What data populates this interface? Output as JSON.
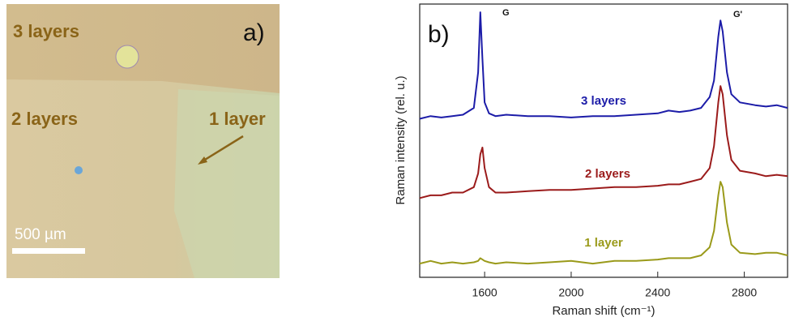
{
  "panel_a": {
    "label": "a)",
    "regions": [
      "3 layers",
      "2 layers",
      "1 layer"
    ],
    "scale_bar": "500 µm"
  },
  "chart_data": {
    "type": "line",
    "panel_label": "b)",
    "xlabel": "Raman shift (cm⁻¹)",
    "ylabel": "Raman intensity (rel. u.)",
    "annotations": [
      "G",
      "G'"
    ],
    "x": [
      1300,
      1350,
      1400,
      1450,
      1500,
      1550,
      1570,
      1580,
      1590,
      1600,
      1620,
      1650,
      1700,
      1800,
      1900,
      2000,
      2100,
      2200,
      2300,
      2400,
      2450,
      2500,
      2550,
      2600,
      2640,
      2660,
      2680,
      2690,
      2700,
      2720,
      2740,
      2780,
      2850,
      2900,
      2950,
      3000
    ],
    "xlim": [
      1300,
      3000
    ],
    "xticks": [
      1600,
      2000,
      2400,
      2800
    ],
    "ylim": [
      0,
      100
    ],
    "series": [
      {
        "name": "3 layers",
        "color": "#1c1ca8",
        "values": [
          58,
          59,
          58.5,
          59,
          59.5,
          62,
          75,
          97,
          80,
          64,
          60,
          59,
          59.5,
          59,
          59,
          58.5,
          59,
          59,
          59.5,
          60,
          61,
          60.5,
          61,
          62,
          66,
          72,
          88,
          94,
          90,
          75,
          67,
          64,
          63,
          62.5,
          63,
          62
        ]
      },
      {
        "name": "2 layers",
        "color": "#9b1b1b",
        "values": [
          29,
          30,
          30,
          31,
          31,
          33,
          38,
          45,
          47.5,
          40,
          33,
          31,
          31,
          31.5,
          32,
          32,
          32.5,
          33,
          33,
          33.5,
          34,
          34,
          35,
          36,
          40,
          48,
          64,
          70,
          67,
          52,
          43,
          39,
          38,
          37,
          37.5,
          37
        ]
      },
      {
        "name": "1 layer",
        "color": "#9a9a1a",
        "values": [
          5,
          6,
          5,
          5.5,
          5,
          5.5,
          6,
          7,
          6.5,
          6,
          5.5,
          5,
          5.5,
          5,
          5.5,
          6,
          5,
          6,
          6,
          6.5,
          7,
          7,
          7,
          8,
          11,
          17,
          30,
          35,
          33,
          20,
          12,
          9,
          8.5,
          9,
          9,
          8
        ]
      }
    ]
  }
}
